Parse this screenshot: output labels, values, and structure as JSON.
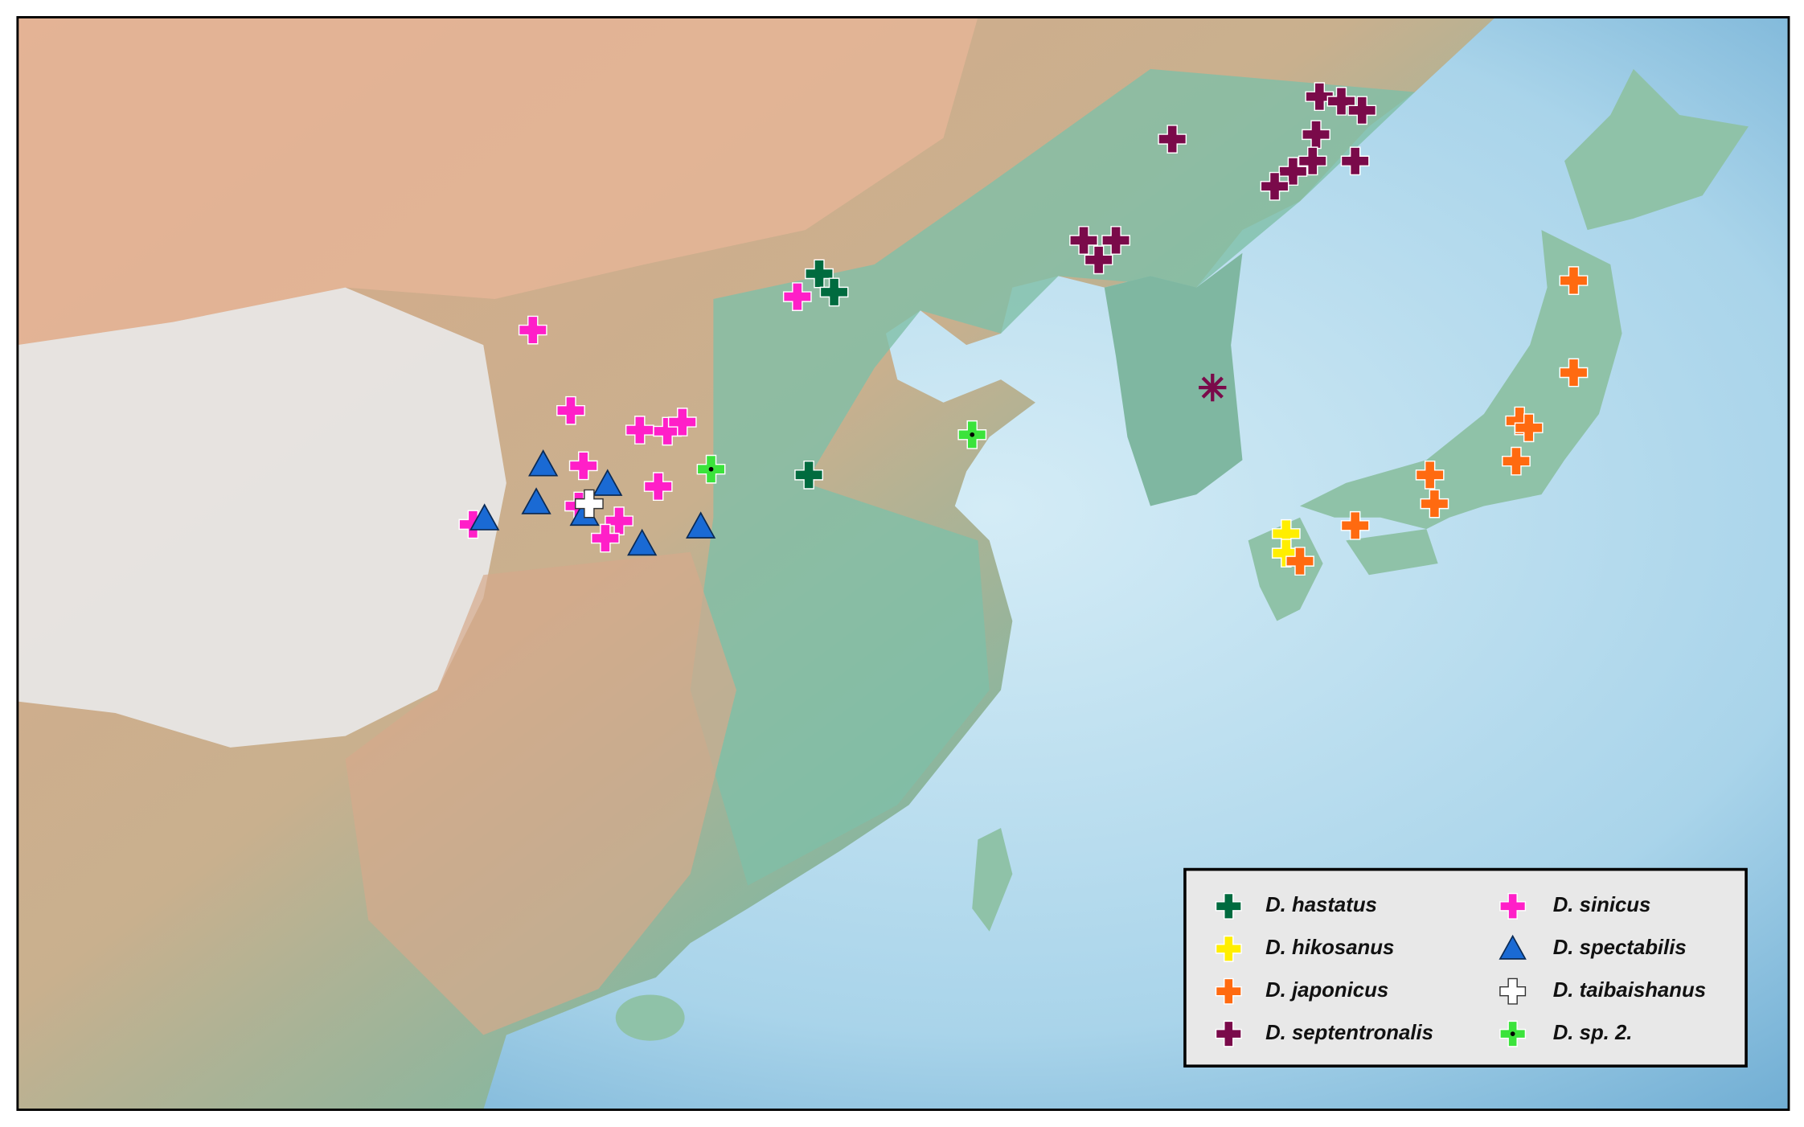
{
  "legend": [
    {
      "label": "D. hastatus",
      "color": "#006b3f"
    },
    {
      "label": "D. hikosanus",
      "color": "#ffee00"
    },
    {
      "label": "D. japonicus",
      "color": "#ff6a10"
    },
    {
      "label": "D. septentronalis",
      "color": "#7a0a4a"
    },
    {
      "label": "D. sinicus",
      "color": "#ff1fc8"
    },
    {
      "label": "D. spectabilis",
      "color": "#1a6ad4"
    },
    {
      "label": "D. taibaishanus",
      "color": "#ffffff"
    },
    {
      "label": "D. sp. 2.",
      "color": "#3be33b"
    }
  ]
}
